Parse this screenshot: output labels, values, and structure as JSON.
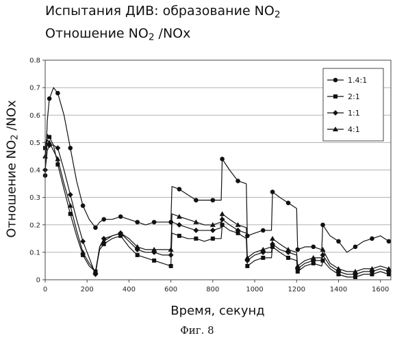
{
  "title": {
    "line1_prefix": "Испытания ДИВ: образование NO",
    "line1_sub": "2",
    "line2_prefix": "Отношение NO",
    "line2_sub": "2",
    "line2_suffix": " /NOx"
  },
  "ylabel": {
    "prefix": "Отношение NO",
    "sub": "2",
    "suffix": " /NOx"
  },
  "xlabel": "Время, секунд",
  "caption": "Фиг. 8",
  "chart_data": {
    "type": "line",
    "title": "Испытания ДИВ: образование NO2 / Отношение NO2 /NOx",
    "xlabel": "Время, секунд",
    "ylabel": "Отношение NO2 /NOx",
    "xlim": [
      0,
      1650
    ],
    "ylim": [
      0,
      0.8
    ],
    "xticks": [
      0,
      200,
      400,
      600,
      800,
      1000,
      1200,
      1400,
      1600
    ],
    "yticks": [
      0,
      0.1,
      0.2,
      0.3,
      0.4,
      0.5,
      0.6,
      0.7,
      0.8
    ],
    "ytick_labels": [
      "0",
      "0.1",
      "0.2",
      "0.3",
      "0.4",
      "0.5",
      "0.6",
      "0.7",
      "0.8"
    ],
    "grid": "horizontal",
    "legend_position": "top-right",
    "series": [
      {
        "name": "1.4:1",
        "marker": "circle",
        "x": [
          0,
          10,
          20,
          40,
          60,
          90,
          120,
          150,
          180,
          210,
          240,
          260,
          280,
          320,
          360,
          400,
          440,
          480,
          520,
          560,
          600,
          605,
          640,
          680,
          720,
          760,
          800,
          840,
          845,
          880,
          920,
          960,
          965,
          1000,
          1040,
          1080,
          1085,
          1120,
          1160,
          1200,
          1205,
          1240,
          1280,
          1320,
          1325,
          1360,
          1400,
          1440,
          1480,
          1520,
          1560,
          1600,
          1640
        ],
        "y": [
          0.38,
          0.58,
          0.66,
          0.7,
          0.68,
          0.6,
          0.48,
          0.36,
          0.27,
          0.22,
          0.19,
          0.21,
          0.22,
          0.22,
          0.23,
          0.22,
          0.21,
          0.2,
          0.21,
          0.21,
          0.21,
          0.34,
          0.33,
          0.31,
          0.29,
          0.29,
          0.29,
          0.29,
          0.44,
          0.4,
          0.36,
          0.35,
          0.16,
          0.17,
          0.18,
          0.18,
          0.32,
          0.3,
          0.28,
          0.26,
          0.11,
          0.12,
          0.12,
          0.11,
          0.2,
          0.16,
          0.14,
          0.1,
          0.12,
          0.14,
          0.15,
          0.16,
          0.14
        ]
      },
      {
        "name": "2:1",
        "marker": "square",
        "x": [
          0,
          10,
          20,
          40,
          60,
          90,
          120,
          150,
          180,
          210,
          240,
          260,
          280,
          320,
          360,
          400,
          440,
          480,
          520,
          560,
          600,
          605,
          640,
          680,
          720,
          760,
          800,
          840,
          845,
          880,
          920,
          960,
          965,
          1000,
          1040,
          1080,
          1085,
          1120,
          1160,
          1200,
          1205,
          1240,
          1280,
          1320,
          1325,
          1360,
          1400,
          1440,
          1480,
          1520,
          1560,
          1600,
          1640
        ],
        "y": [
          0.48,
          0.53,
          0.52,
          0.49,
          0.42,
          0.33,
          0.24,
          0.16,
          0.09,
          0.05,
          0.03,
          0.11,
          0.13,
          0.15,
          0.16,
          0.12,
          0.09,
          0.08,
          0.07,
          0.06,
          0.05,
          0.17,
          0.16,
          0.15,
          0.15,
          0.14,
          0.15,
          0.15,
          0.2,
          0.18,
          0.17,
          0.15,
          0.05,
          0.07,
          0.08,
          0.08,
          0.12,
          0.1,
          0.08,
          0.07,
          0.03,
          0.05,
          0.06,
          0.05,
          0.07,
          0.04,
          0.02,
          0.01,
          0.01,
          0.02,
          0.02,
          0.03,
          0.02
        ]
      },
      {
        "name": "1:1",
        "marker": "diamond",
        "x": [
          0,
          10,
          20,
          40,
          60,
          90,
          120,
          150,
          180,
          210,
          240,
          260,
          280,
          320,
          360,
          400,
          440,
          480,
          520,
          560,
          600,
          605,
          640,
          680,
          720,
          760,
          800,
          840,
          845,
          880,
          920,
          960,
          965,
          1000,
          1040,
          1080,
          1085,
          1120,
          1160,
          1200,
          1205,
          1240,
          1280,
          1320,
          1325,
          1360,
          1400,
          1440,
          1480,
          1520,
          1560,
          1600,
          1640
        ],
        "y": [
          0.4,
          0.47,
          0.49,
          0.49,
          0.48,
          0.4,
          0.31,
          0.22,
          0.14,
          0.08,
          0.02,
          0.12,
          0.15,
          0.16,
          0.17,
          0.14,
          0.11,
          0.1,
          0.1,
          0.09,
          0.09,
          0.21,
          0.2,
          0.19,
          0.18,
          0.18,
          0.18,
          0.19,
          0.22,
          0.2,
          0.18,
          0.17,
          0.07,
          0.09,
          0.1,
          0.1,
          0.13,
          0.11,
          0.1,
          0.09,
          0.04,
          0.06,
          0.07,
          0.07,
          0.09,
          0.05,
          0.03,
          0.02,
          0.02,
          0.03,
          0.03,
          0.04,
          0.03
        ]
      },
      {
        "name": "4:1",
        "marker": "triangle",
        "x": [
          0,
          10,
          20,
          40,
          60,
          90,
          120,
          150,
          180,
          210,
          240,
          260,
          280,
          320,
          360,
          400,
          440,
          480,
          520,
          560,
          600,
          605,
          640,
          680,
          720,
          760,
          800,
          840,
          845,
          880,
          920,
          960,
          965,
          1000,
          1040,
          1080,
          1085,
          1120,
          1160,
          1200,
          1205,
          1240,
          1280,
          1320,
          1325,
          1360,
          1400,
          1440,
          1480,
          1520,
          1560,
          1600,
          1640
        ],
        "y": [
          0.45,
          0.51,
          0.5,
          0.47,
          0.44,
          0.35,
          0.27,
          0.18,
          0.1,
          0.06,
          0.03,
          0.12,
          0.14,
          0.16,
          0.17,
          0.15,
          0.12,
          0.11,
          0.11,
          0.11,
          0.11,
          0.24,
          0.23,
          0.22,
          0.21,
          0.2,
          0.2,
          0.21,
          0.24,
          0.22,
          0.2,
          0.19,
          0.08,
          0.1,
          0.11,
          0.12,
          0.15,
          0.13,
          0.11,
          0.1,
          0.05,
          0.07,
          0.08,
          0.08,
          0.11,
          0.06,
          0.04,
          0.03,
          0.03,
          0.04,
          0.04,
          0.05,
          0.04
        ]
      }
    ]
  }
}
